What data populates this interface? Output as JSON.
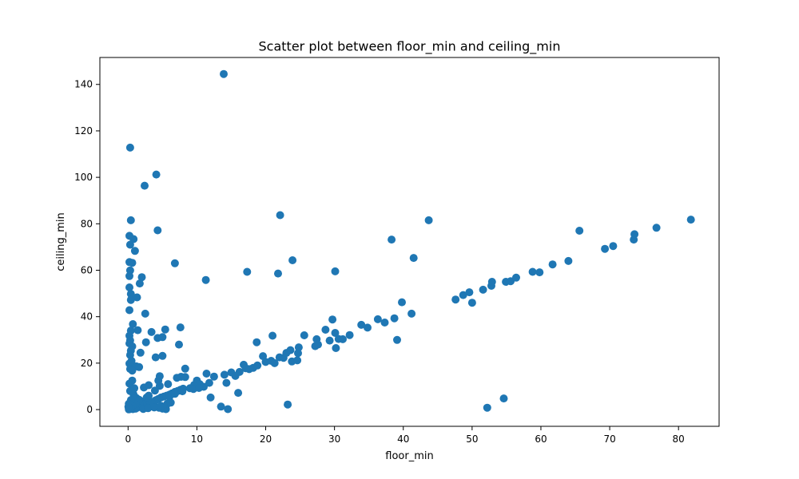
{
  "chart_data": {
    "type": "scatter",
    "title": "Scatter plot between floor_min and ceiling_min",
    "xlabel": "floor_min",
    "ylabel": "ceiling_min",
    "xlim": [
      -4.1,
      85.9
    ],
    "ylim": [
      -7.2,
      151.6
    ],
    "xticks": [
      0,
      10,
      20,
      30,
      40,
      50,
      60,
      70,
      80
    ],
    "yticks": [
      0,
      20,
      40,
      60,
      80,
      100,
      120,
      140
    ],
    "grid": false,
    "marker_color": "#1f77b4",
    "series": [
      {
        "points": [
          [
            0.3,
            112.8
          ],
          [
            4.1,
            101.2
          ],
          [
            2.4,
            96.4
          ],
          [
            0.4,
            81.5
          ],
          [
            4.3,
            77.2
          ],
          [
            0.2,
            74.8
          ],
          [
            0.8,
            73.4
          ],
          [
            0.3,
            71.0
          ],
          [
            1.0,
            68.3
          ],
          [
            0.2,
            63.5
          ],
          [
            0.6,
            63.2
          ],
          [
            6.8,
            63.0
          ],
          [
            2.0,
            57.0
          ],
          [
            0.3,
            59.9
          ],
          [
            0.2,
            57.5
          ],
          [
            1.7,
            54.3
          ],
          [
            0.2,
            52.6
          ],
          [
            0.4,
            49.8
          ],
          [
            1.3,
            48.3
          ],
          [
            0.4,
            47.2
          ],
          [
            0.2,
            42.8
          ],
          [
            2.5,
            41.3
          ],
          [
            0.7,
            36.8
          ],
          [
            1.4,
            34.2
          ],
          [
            0.4,
            34.0
          ],
          [
            0.2,
            31.8
          ],
          [
            0.3,
            29.8
          ],
          [
            0.2,
            28.5
          ],
          [
            0.6,
            27.2
          ],
          [
            0.4,
            25.4
          ],
          [
            0.3,
            23.5
          ],
          [
            0.5,
            21.0
          ],
          [
            0.2,
            19.8
          ],
          [
            0.8,
            18.7
          ],
          [
            1.2,
            18.6
          ],
          [
            1.6,
            18.3
          ],
          [
            0.3,
            17.5
          ],
          [
            0.6,
            16.8
          ],
          [
            1.8,
            24.5
          ],
          [
            2.6,
            29.0
          ],
          [
            3.4,
            33.4
          ],
          [
            4.3,
            30.8
          ],
          [
            5.0,
            31.2
          ],
          [
            5.4,
            34.5
          ],
          [
            7.6,
            35.4
          ],
          [
            7.4,
            28.0
          ],
          [
            5.0,
            23.1
          ],
          [
            4.0,
            22.5
          ],
          [
            0.2,
            11.2
          ],
          [
            0.6,
            12.5
          ],
          [
            0.3,
            8.0
          ],
          [
            0.8,
            6.5
          ],
          [
            1.2,
            5.0
          ],
          [
            1.6,
            4.2
          ],
          [
            2.0,
            3.5
          ],
          [
            2.6,
            2.8
          ],
          [
            3.0,
            2.0
          ],
          [
            3.5,
            1.5
          ],
          [
            4.0,
            1.2
          ],
          [
            4.5,
            0.8
          ],
          [
            5.0,
            0.4
          ],
          [
            5.5,
            0.2
          ],
          [
            0.1,
            0.1
          ],
          [
            0.3,
            0.3
          ],
          [
            0.5,
            0.5
          ],
          [
            0.7,
            0.2
          ],
          [
            0.9,
            0.6
          ],
          [
            1.1,
            0.4
          ],
          [
            1.3,
            0.8
          ],
          [
            1.5,
            1.0
          ],
          [
            1.8,
            1.4
          ],
          [
            2.1,
            1.8
          ],
          [
            2.4,
            2.3
          ],
          [
            2.8,
            2.5
          ],
          [
            3.2,
            3.0
          ],
          [
            3.6,
            3.4
          ],
          [
            4.0,
            4.0
          ],
          [
            4.4,
            4.6
          ],
          [
            4.8,
            5.2
          ],
          [
            5.2,
            5.6
          ],
          [
            5.6,
            6.0
          ],
          [
            6.0,
            6.4
          ],
          [
            6.4,
            7.0
          ],
          [
            6.8,
            7.6
          ],
          [
            7.2,
            8.0
          ],
          [
            7.6,
            8.5
          ],
          [
            8.0,
            9.0
          ],
          [
            2.3,
            9.5
          ],
          [
            3.0,
            10.5
          ],
          [
            3.9,
            8.2
          ],
          [
            4.6,
            10.2
          ],
          [
            4.4,
            12.5
          ],
          [
            4.6,
            14.4
          ],
          [
            5.8,
            11.0
          ],
          [
            7.1,
            13.7
          ],
          [
            7.7,
            14.1
          ],
          [
            8.3,
            14.0
          ],
          [
            8.3,
            17.6
          ],
          [
            9.0,
            9.2
          ],
          [
            9.6,
            10.6
          ],
          [
            10.0,
            12.5
          ],
          [
            10.4,
            11.0
          ],
          [
            11.0,
            9.8
          ],
          [
            11.4,
            15.5
          ],
          [
            11.8,
            11.5
          ],
          [
            12.0,
            5.2
          ],
          [
            12.5,
            14.2
          ],
          [
            13.5,
            1.3
          ],
          [
            14.0,
            15.0
          ],
          [
            14.5,
            0.2
          ],
          [
            14.3,
            11.5
          ],
          [
            15.0,
            16.0
          ],
          [
            15.6,
            14.5
          ],
          [
            16.0,
            7.2
          ],
          [
            16.2,
            16.2
          ],
          [
            16.8,
            19.3
          ],
          [
            17.1,
            17.8
          ],
          [
            17.6,
            17.4
          ],
          [
            18.2,
            18.0
          ],
          [
            18.8,
            19.0
          ],
          [
            18.7,
            29.0
          ],
          [
            19.6,
            23.0
          ],
          [
            20.0,
            20.5
          ],
          [
            20.8,
            21.0
          ],
          [
            21.0,
            31.8
          ],
          [
            21.3,
            20.0
          ],
          [
            22.0,
            22.5
          ],
          [
            22.6,
            22.3
          ],
          [
            23.0,
            24.4
          ],
          [
            23.2,
            2.2
          ],
          [
            23.6,
            25.6
          ],
          [
            23.8,
            20.7
          ],
          [
            24.6,
            21.2
          ],
          [
            24.7,
            24.3
          ],
          [
            24.8,
            26.8
          ],
          [
            25.6,
            32.0
          ],
          [
            27.2,
            27.3
          ],
          [
            27.4,
            30.3
          ],
          [
            27.6,
            28.0
          ],
          [
            28.7,
            34.4
          ],
          [
            29.3,
            29.7
          ],
          [
            29.7,
            38.8
          ],
          [
            30.1,
            33.0
          ],
          [
            30.2,
            26.5
          ],
          [
            30.6,
            30.4
          ],
          [
            31.2,
            30.3
          ],
          [
            32.2,
            32.1
          ],
          [
            33.9,
            36.5
          ],
          [
            34.8,
            35.3
          ],
          [
            36.3,
            38.9
          ],
          [
            37.3,
            37.5
          ],
          [
            38.7,
            39.3
          ],
          [
            39.1,
            30.0
          ],
          [
            39.8,
            46.2
          ],
          [
            41.2,
            41.3
          ],
          [
            47.6,
            47.4
          ],
          [
            48.7,
            49.3
          ],
          [
            49.6,
            50.5
          ],
          [
            50.0,
            46.0
          ],
          [
            51.6,
            51.6
          ],
          [
            52.8,
            53.3
          ],
          [
            52.9,
            55.0
          ],
          [
            54.9,
            55.0
          ],
          [
            55.6,
            55.3
          ],
          [
            56.4,
            56.8
          ],
          [
            58.8,
            59.3
          ],
          [
            59.8,
            59.1
          ],
          [
            61.7,
            62.5
          ],
          [
            64.0,
            64.0
          ],
          [
            65.6,
            77.0
          ],
          [
            69.3,
            69.2
          ],
          [
            70.5,
            70.4
          ],
          [
            73.5,
            73.2
          ],
          [
            73.6,
            75.5
          ],
          [
            76.8,
            78.3
          ],
          [
            81.8,
            81.8
          ],
          [
            52.2,
            0.8
          ],
          [
            54.6,
            4.8
          ],
          [
            13.9,
            144.5
          ],
          [
            22.1,
            83.7
          ],
          [
            43.7,
            81.5
          ],
          [
            38.3,
            73.2
          ],
          [
            41.5,
            65.3
          ],
          [
            23.9,
            64.3
          ],
          [
            30.1,
            59.5
          ],
          [
            17.3,
            59.3
          ],
          [
            21.8,
            58.6
          ],
          [
            11.3,
            55.8
          ],
          [
            6.0,
            5.5
          ],
          [
            6.8,
            6.8
          ],
          [
            7.9,
            7.9
          ],
          [
            9.5,
            8.9
          ],
          [
            10.3,
            9.3
          ],
          [
            3.0,
            6.0
          ],
          [
            2.7,
            5.2
          ],
          [
            1.5,
            3.8
          ],
          [
            1.1,
            2.4
          ],
          [
            0.6,
            1.6
          ],
          [
            0.4,
            0.9
          ],
          [
            0.2,
            0.4
          ],
          [
            2.2,
            0.3
          ],
          [
            2.9,
            0.6
          ],
          [
            3.8,
            0.9
          ],
          [
            4.8,
            1.6
          ],
          [
            5.7,
            2.5
          ],
          [
            6.2,
            3.0
          ],
          [
            0.9,
            9.2
          ],
          [
            0.4,
            4.1
          ],
          [
            0.1,
            2.5
          ],
          [
            0.05,
            1.2
          ]
        ]
      }
    ]
  }
}
